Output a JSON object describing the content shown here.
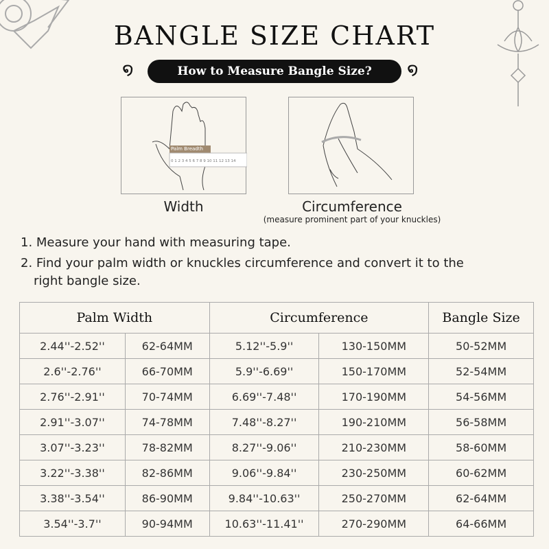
{
  "title": "BANGLE SIZE CHART",
  "subtitle": "How to Measure Bangle Size?",
  "illustrations": [
    {
      "caption": "Width",
      "label": "Palm Breadth",
      "ruler": "0 1 2 3 4 5 6 7 8 9 10 11 12 13 14"
    },
    {
      "caption": "Circumference",
      "note": "(measure prominent part of your knuckles)"
    }
  ],
  "steps": [
    "1. Measure your hand with measuring tape.",
    "2. Find your palm width or knuckles circumference and convert it to the",
    "right bangle size."
  ],
  "table": {
    "headers": [
      "Palm Width",
      "Circumference",
      "Bangle Size"
    ],
    "rows": [
      [
        "2.44''-2.52''",
        "62-64MM",
        "5.12''-5.9''",
        "130-150MM",
        "50-52MM"
      ],
      [
        "2.6''-2.76''",
        "66-70MM",
        "5.9''-6.69''",
        "150-170MM",
        "52-54MM"
      ],
      [
        "2.76''-2.91''",
        "70-74MM",
        "6.69''-7.48''",
        "170-190MM",
        "54-56MM"
      ],
      [
        "2.91''-3.07''",
        "74-78MM",
        "7.48''-8.27''",
        "190-210MM",
        "56-58MM"
      ],
      [
        "3.07''-3.23''",
        "78-82MM",
        "8.27''-9.06''",
        "210-230MM",
        "58-60MM"
      ],
      [
        "3.22''-3.38''",
        "82-86MM",
        "9.06''-9.84''",
        "230-250MM",
        "60-62MM"
      ],
      [
        "3.38''-3.54''",
        "86-90MM",
        "9.84''-10.63''",
        "250-270MM",
        "62-64MM"
      ],
      [
        "3.54''-3.7''",
        "90-94MM",
        "10.63''-11.41''",
        "270-290MM",
        "64-66MM"
      ]
    ]
  }
}
